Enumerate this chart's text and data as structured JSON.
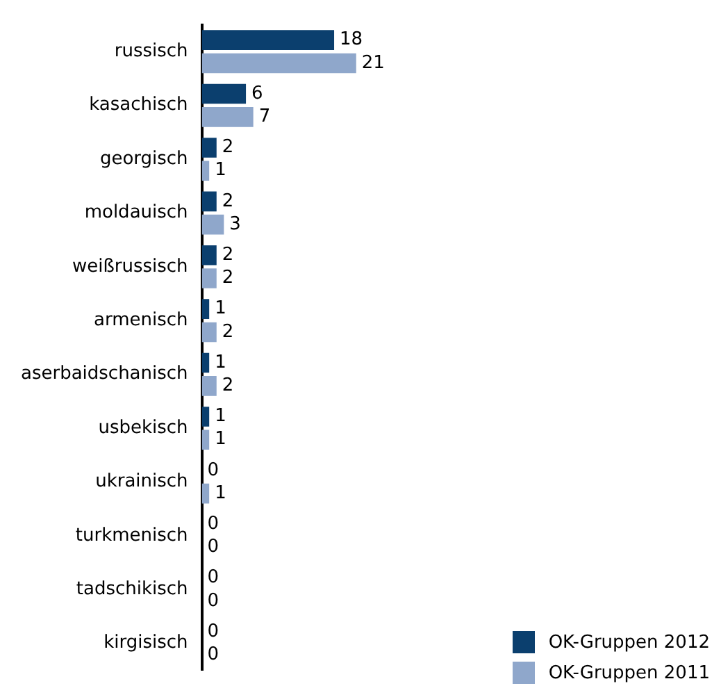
{
  "chart_data": {
    "type": "bar",
    "orientation": "horizontal",
    "categories": [
      "russisch",
      "kasachisch",
      "georgisch",
      "moldauisch",
      "weißrussisch",
      "armenisch",
      "aserbaidschanisch",
      "usbekisch",
      "ukrainisch",
      "turkmenisch",
      "tadschikisch",
      "kirgisisch"
    ],
    "series": [
      {
        "name": "OK-Gruppen 2012",
        "color": "#0b3f6e",
        "values": [
          18,
          6,
          2,
          2,
          2,
          1,
          1,
          1,
          0,
          0,
          0,
          0
        ]
      },
      {
        "name": "OK-Gruppen 2011",
        "color": "#8fa7cb",
        "values": [
          21,
          7,
          1,
          3,
          2,
          2,
          2,
          1,
          1,
          0,
          0,
          0
        ]
      }
    ],
    "data_labels": true,
    "legend": "bottom right"
  }
}
